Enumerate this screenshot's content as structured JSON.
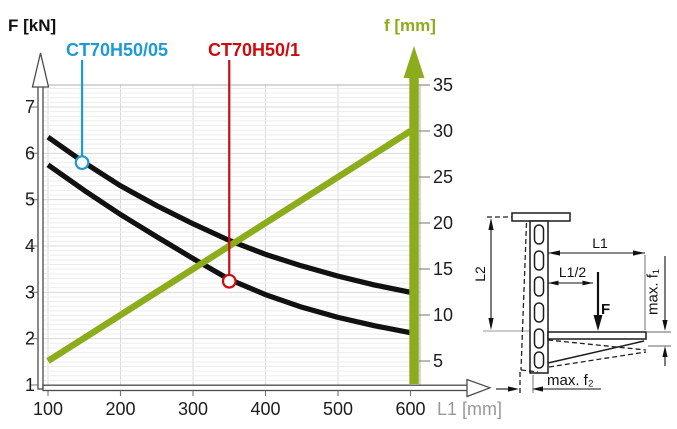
{
  "page": {
    "background": "#ffffff"
  },
  "chart": {
    "title_left": "F [kN]",
    "title_right": "f [mm]",
    "xlabel": "L1 [mm]",
    "colors": {
      "curve_black": "#111111",
      "deflection_green": "#8dac1b",
      "callout_blue": "#1e9ad6",
      "callout_red": "#cc0d10",
      "grid_minor": "#ededed",
      "grid_major": "#d8d8d8",
      "plot_border": "#adadad",
      "gray_axis_label": "#98999b"
    },
    "callouts": [
      {
        "label": "CT70H50/05",
        "series": "CT70H50/05",
        "color": "#1e9ad6",
        "L1": 147,
        "F": 5.8
      },
      {
        "label": "CT70H50/1",
        "series": "CT70H50/1",
        "color": "#cc0d10",
        "L1": 350,
        "F": 3.24
      }
    ]
  },
  "chart_data": {
    "type": "line",
    "title": "",
    "xlabel": "L1 [mm]",
    "ylabel_left": "F [kN]",
    "ylabel_right": "f [mm]",
    "x": [
      100,
      150,
      200,
      250,
      300,
      350,
      400,
      450,
      500,
      550,
      600
    ],
    "series": [
      {
        "name": "CT70H50/05",
        "axis": "left",
        "color": "#111111",
        "values": [
          6.35,
          5.8,
          5.3,
          4.87,
          4.48,
          4.12,
          3.82,
          3.57,
          3.35,
          3.16,
          3.0
        ]
      },
      {
        "name": "CT70H50/1",
        "axis": "left",
        "color": "#111111",
        "values": [
          5.75,
          5.2,
          4.68,
          4.2,
          3.73,
          3.28,
          2.95,
          2.68,
          2.46,
          2.28,
          2.13
        ]
      },
      {
        "name": "f (deflection)",
        "axis": "right",
        "color": "#8dac1b",
        "values": [
          5,
          7.5,
          10,
          12.5,
          15,
          17.5,
          20,
          22.5,
          25,
          27.5,
          30
        ]
      }
    ],
    "x_ticks": [
      100,
      200,
      300,
      400,
      500,
      600
    ],
    "y_ticks_left": [
      1,
      2,
      3,
      4,
      5,
      6,
      7
    ],
    "y_ticks_right": [
      5,
      10,
      15,
      20,
      25,
      30,
      35
    ],
    "xlim": [
      100,
      600
    ],
    "ylim_left": [
      1,
      7.5
    ],
    "ylim_right": [
      5,
      37
    ],
    "grid": "horizontal minor 0.1 kN + major 1 kN, vertical every 100 mm",
    "legend": "callout labels with leader lines above plot"
  },
  "diagram": {
    "labels": {
      "l1": "L1",
      "l1_half": "L1/2",
      "l2": "L2",
      "force": "F",
      "max_f1": "max. f₁",
      "max_f2": "max. f₂"
    }
  }
}
